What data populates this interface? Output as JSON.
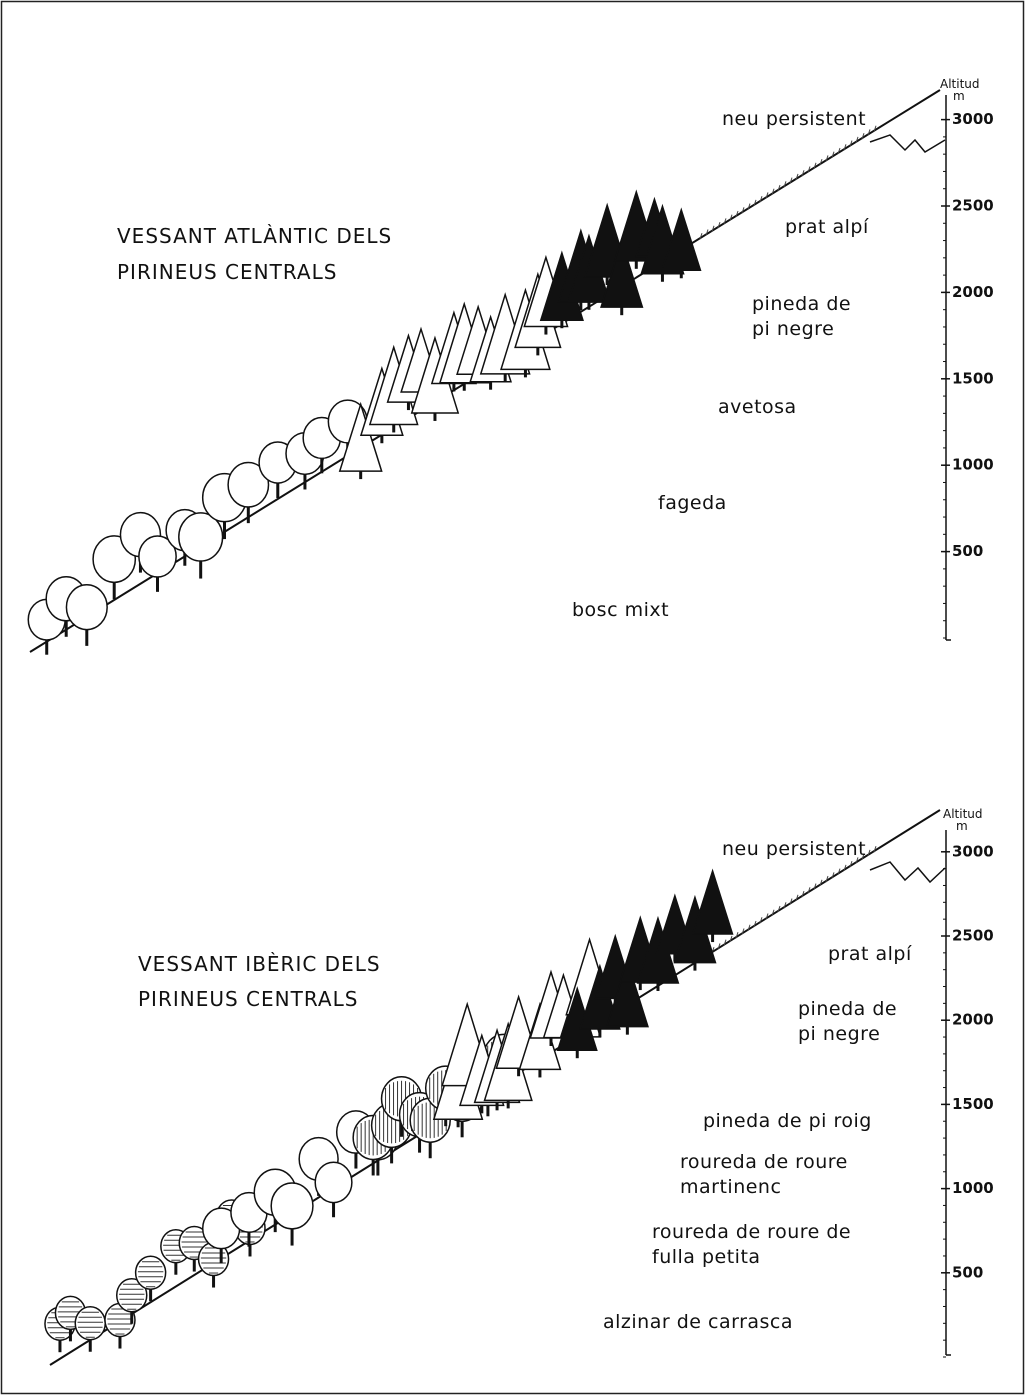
{
  "panels": [
    {
      "title_lines": [
        "VESSANT ATLÀNTIC DELS",
        "PIRINEUS CENTRALS"
      ],
      "axis": {
        "title": "Altitud",
        "unit": "m",
        "ticks": [
          500,
          1000,
          1500,
          2000,
          2500,
          3000
        ]
      },
      "zones": [
        {
          "label_lines": [
            "neu persistent"
          ]
        },
        {
          "label_lines": [
            "prat alpí"
          ]
        },
        {
          "label_lines": [
            "pineda de",
            "pi negre"
          ]
        },
        {
          "label_lines": [
            "avetosa"
          ]
        },
        {
          "label_lines": [
            "fageda"
          ]
        },
        {
          "label_lines": [
            "bosc mixt"
          ]
        }
      ]
    },
    {
      "title_lines": [
        "VESSANT IBÈRIC DELS",
        "PIRINEUS CENTRALS"
      ],
      "axis": {
        "title": "Altitud",
        "unit": "m",
        "ticks": [
          500,
          1000,
          1500,
          2000,
          2500,
          3000
        ]
      },
      "zones": [
        {
          "label_lines": [
            "neu persistent"
          ]
        },
        {
          "label_lines": [
            "prat alpí"
          ]
        },
        {
          "label_lines": [
            "pineda de",
            "pi negre"
          ]
        },
        {
          "label_lines": [
            "pineda de pi roig"
          ]
        },
        {
          "label_lines": [
            "roureda de roure",
            "martinenc"
          ]
        },
        {
          "label_lines": [
            "roureda de roure de",
            "fulla petita"
          ]
        },
        {
          "label_lines": [
            "alzinar de carrasca"
          ]
        }
      ]
    }
  ]
}
